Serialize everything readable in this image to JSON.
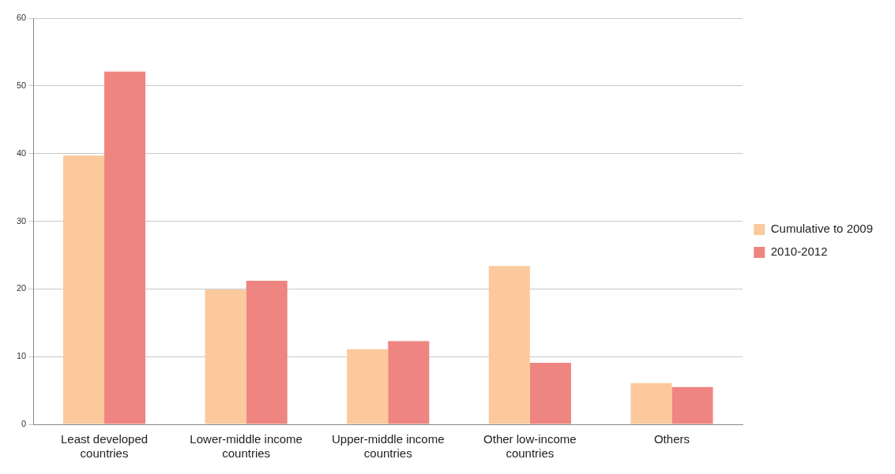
{
  "chart_data": {
    "type": "bar",
    "categories": [
      "Least developed countries",
      "Lower-middle income countries",
      "Upper-middle income countries",
      "Other low-income countries",
      "Others"
    ],
    "series": [
      {
        "name": "Cumulative to 2009",
        "color": "#fbc99b",
        "values": [
          39.7,
          19.9,
          11.1,
          23.4,
          6.1
        ]
      },
      {
        "name": "2010-2012",
        "color": "#ee8580",
        "values": [
          52.1,
          21.2,
          12.3,
          9.1,
          5.5
        ]
      }
    ],
    "ylim": [
      0,
      60
    ],
    "yticks": [
      0,
      10,
      20,
      30,
      40,
      50,
      60
    ],
    "grid": "y",
    "legend": "right"
  }
}
